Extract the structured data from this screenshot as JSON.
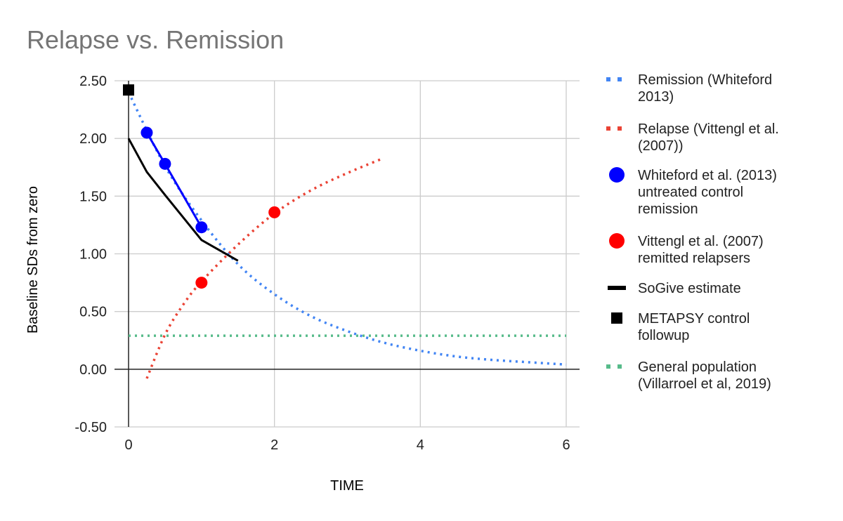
{
  "chart_data": {
    "type": "line",
    "title": "Relapse vs. Remission",
    "xlabel": "TIME",
    "ylabel": "Baseline SDs from zero",
    "xlim": [
      0,
      6
    ],
    "ylim": [
      -0.5,
      2.5
    ],
    "x_ticks": [
      0,
      2,
      4,
      6
    ],
    "x_tick_labels": [
      "0",
      "2",
      "4",
      "6"
    ],
    "y_ticks": [
      2.5,
      2.0,
      1.5,
      1.0,
      0.5,
      0.0,
      -0.5
    ],
    "y_tick_labels": [
      "2.50",
      "2.00",
      "1.50",
      "1.00",
      "0.50",
      "0.00",
      "-0.50"
    ],
    "grid": true,
    "legend_position": "right",
    "series": [
      {
        "name": "Remission (Whiteford 2013)",
        "color": "#4285f4",
        "style": "dotted",
        "x": [
          0,
          0.5,
          1,
          1.5,
          2,
          2.5,
          3,
          3.5,
          4,
          4.5,
          5,
          5.5,
          6
        ],
        "y": [
          2.4,
          1.76,
          1.29,
          0.91,
          0.65,
          0.46,
          0.33,
          0.23,
          0.16,
          0.11,
          0.08,
          0.06,
          0.04
        ]
      },
      {
        "name": "Relapse (Vittengl et al. (2007))",
        "color": "#ea4335",
        "style": "dotted",
        "x": [
          0.25,
          0.5,
          0.75,
          1,
          1.5,
          2,
          2.5,
          3,
          3.5
        ],
        "y": [
          -0.08,
          0.3,
          0.56,
          0.76,
          1.08,
          1.35,
          1.55,
          1.7,
          1.83
        ]
      },
      {
        "name": "Whiteford et al. (2013) untreated control remission",
        "color": "#0000ff",
        "style": "line-markers",
        "x": [
          0.25,
          0.5,
          1
        ],
        "y": [
          2.05,
          1.78,
          1.23
        ]
      },
      {
        "name": "Vittengl et al. (2007) remitted relapsers",
        "color": "#ff0000",
        "style": "markers",
        "x": [
          1,
          2
        ],
        "y": [
          0.75,
          1.36
        ]
      },
      {
        "name": "SoGive estimate",
        "color": "#000000",
        "style": "line",
        "x": [
          0,
          0.25,
          0.5,
          1,
          1.5
        ],
        "y": [
          2.0,
          1.71,
          1.51,
          1.12,
          0.94
        ]
      },
      {
        "name": "METAPSY control followup",
        "color": "#000000",
        "style": "square-marker",
        "x": [
          0
        ],
        "y": [
          2.42
        ]
      },
      {
        "name": "General population (Villarroel et al, 2019)",
        "color": "#57bb8a",
        "style": "dotted",
        "x": [
          0,
          6
        ],
        "y": [
          0.29,
          0.29
        ]
      }
    ],
    "legend": [
      {
        "lines": [
          "Remission (Whiteford",
          "2013)"
        ],
        "symbol": "dots",
        "color": "#4285f4"
      },
      {
        "lines": [
          "Relapse (Vittengl et al.",
          "(2007))"
        ],
        "symbol": "dots",
        "color": "#ea4335"
      },
      {
        "lines": [
          "Whiteford et al. (2013)",
          "untreated control",
          "remission"
        ],
        "symbol": "circle",
        "color": "#0000ff"
      },
      {
        "lines": [
          "Vittengl et al. (2007)",
          "remitted relapsers"
        ],
        "symbol": "circle",
        "color": "#ff0000"
      },
      {
        "lines": [
          "SoGive estimate"
        ],
        "symbol": "line",
        "color": "#000000"
      },
      {
        "lines": [
          "METAPSY control",
          "followup"
        ],
        "symbol": "square",
        "color": "#000000"
      },
      {
        "lines": [
          "General population",
          "(Villarroel et al, 2019)"
        ],
        "symbol": "dots",
        "color": "#57bb8a"
      }
    ]
  }
}
